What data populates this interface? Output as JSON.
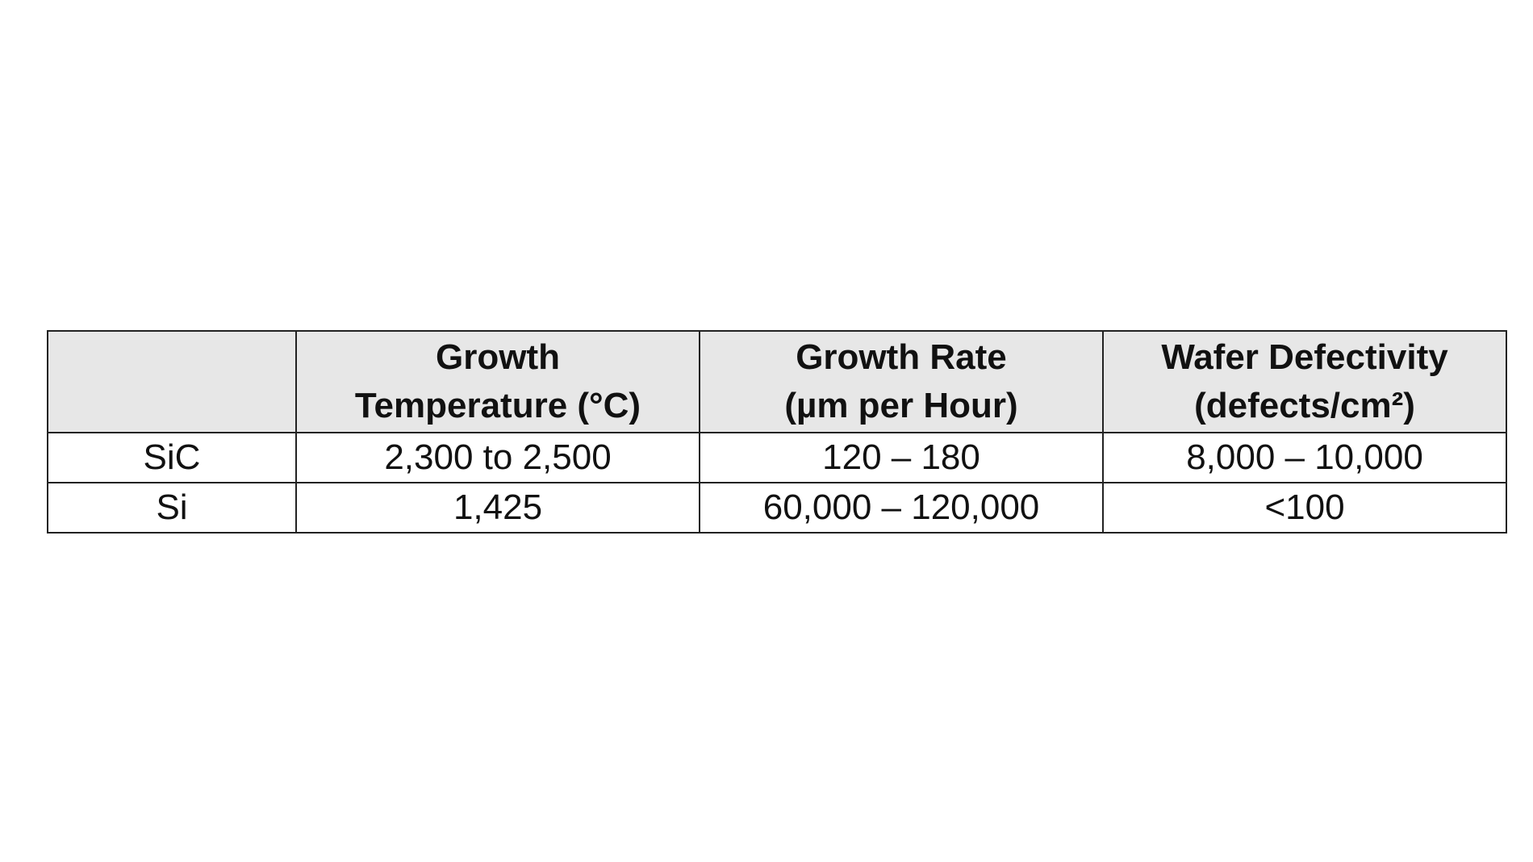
{
  "table": {
    "headers": [
      {
        "line1": "",
        "line2": ""
      },
      {
        "line1": "Growth",
        "line2": "Temperature (°C)"
      },
      {
        "line1": "Growth Rate",
        "line2": "(µm per Hour)"
      },
      {
        "line1": "Wafer Defectivity",
        "line2": "(defects/cm²)"
      }
    ],
    "rows": [
      {
        "material": "SiC",
        "temperature": "2,300 to 2,500",
        "rate": "120 – 180",
        "defectivity": "8,000 – 10,000"
      },
      {
        "material": "Si",
        "temperature": "1,425",
        "rate": "60,000 – 120,000",
        "defectivity": "<100"
      }
    ]
  },
  "colors": {
    "header_bg": "#e7e7e7",
    "border": "#222222",
    "text": "#111111"
  }
}
